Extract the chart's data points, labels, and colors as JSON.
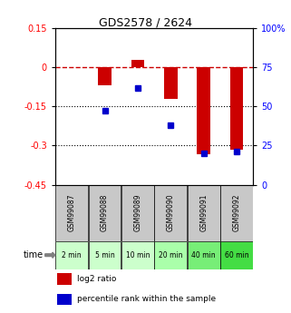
{
  "title": "GDS2578 / 2624",
  "samples": [
    "GSM99087",
    "GSM99088",
    "GSM99089",
    "GSM99090",
    "GSM99091",
    "GSM99092"
  ],
  "times": [
    "2 min",
    "5 min",
    "10 min",
    "20 min",
    "40 min",
    "60 min"
  ],
  "log2_ratios": [
    0.0,
    -0.07,
    0.03,
    -0.12,
    -0.335,
    -0.315
  ],
  "percentile_ranks": [
    null,
    47,
    62,
    38,
    20,
    21
  ],
  "ylim_left": [
    -0.45,
    0.15
  ],
  "ylim_right": [
    0,
    100
  ],
  "yticks_left": [
    0.15,
    0,
    -0.15,
    -0.3,
    -0.45
  ],
  "yticks_right": [
    100,
    75,
    50,
    25,
    0
  ],
  "ytick_right_labels": [
    "100%",
    "75",
    "50",
    "25",
    "0"
  ],
  "hlines": [
    -0.15,
    -0.3
  ],
  "bar_color": "#cc0000",
  "dot_color": "#0000cc",
  "dashed_line_color": "#cc0000",
  "bg_color_plot": "#ffffff",
  "sample_box_color": "#c8c8c8",
  "time_box_colors": [
    "#ccffcc",
    "#ccffcc",
    "#ccffcc",
    "#aaffaa",
    "#77ee77",
    "#44dd44"
  ],
  "legend_bar_label": "log2 ratio",
  "legend_dot_label": "percentile rank within the sample",
  "bar_width": 0.4
}
